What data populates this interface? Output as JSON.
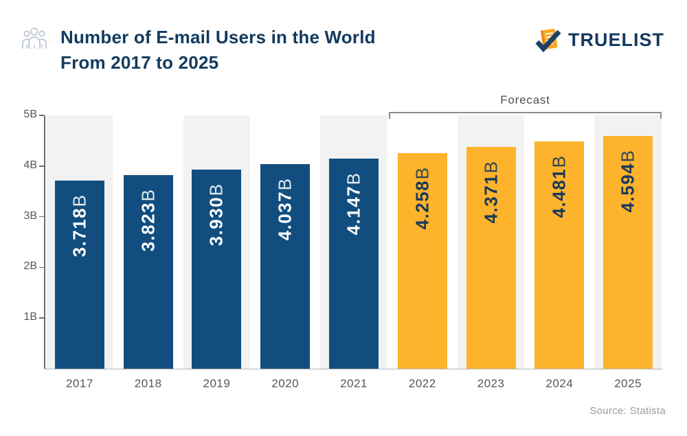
{
  "header": {
    "title_line1": "Number of E-mail Users in the World",
    "title_line2": "From 2017 to 2025",
    "brand": "TRUELIST"
  },
  "icons": {
    "people_group_icon_color": "#C5CDD6",
    "logo_clipboard_color": "#F9A825",
    "logo_check_color": "#1B4166"
  },
  "chart_data": {
    "type": "bar",
    "title": "Number of E-mail Users in the World From 2017 to 2025",
    "categories": [
      "2017",
      "2018",
      "2019",
      "2020",
      "2021",
      "2022",
      "2023",
      "2024",
      "2025"
    ],
    "values": [
      3.718,
      3.823,
      3.93,
      4.037,
      4.147,
      4.258,
      4.371,
      4.481,
      4.594
    ],
    "labels": [
      "3.718B",
      "3.823B",
      "3.930B",
      "4.037B",
      "4.147B",
      "4.258B",
      "4.371B",
      "4.481B",
      "4.594B"
    ],
    "unit": "B",
    "ylim": [
      0,
      5
    ],
    "yticks": [
      "5B",
      "4B",
      "3B",
      "2B",
      "1B"
    ],
    "grid": "off",
    "legend": "none",
    "historical_count": 5,
    "forecast_label": "Forecast",
    "forecast_categories": [
      "2022",
      "2023",
      "2024",
      "2025"
    ],
    "colors": {
      "historical_bar": "#114E7F",
      "forecast_bar": "#FDB32B",
      "historical_value_text": "#FFFFFF",
      "forecast_value_text": "#16395D",
      "stripe": "#F2F2F3"
    }
  },
  "footer": {
    "source": "Source: Statista"
  }
}
